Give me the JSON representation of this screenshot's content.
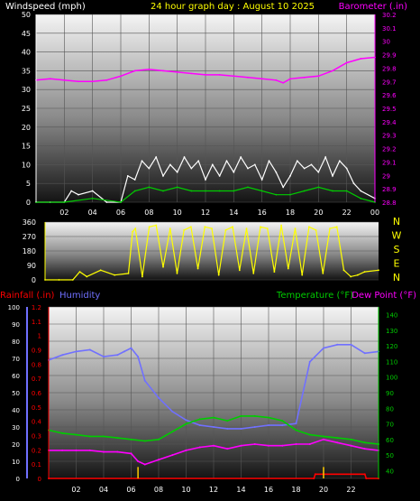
{
  "header": {
    "left_label": "Windspeed (mph)",
    "title": "24 hour graph day : August 10 2025",
    "right_label": "Barometer (.in)"
  },
  "colors": {
    "background": "#000000",
    "axis_text": "#ffffff",
    "title": "#ffff00",
    "barometer": "#ff00ff",
    "wind_speed": "#ffffff",
    "wind_avg": "#00cc00",
    "wind_direction": "#ffff00",
    "rainfall": "#ff0000",
    "humidity": "#7070ff",
    "temperature": "#00cc00",
    "dew_point": "#ff00ff"
  },
  "chart_data": [
    {
      "type": "line",
      "panel": "wind-barometer",
      "xlabel": "",
      "x_ticks": [
        "02",
        "04",
        "06",
        "08",
        "10",
        "12",
        "14",
        "16",
        "18",
        "20",
        "22",
        "00"
      ],
      "ylabel_left": "Windspeed (mph)",
      "ylim_left": [
        0,
        50
      ],
      "yticks_left": [
        "0",
        "5",
        "10",
        "15",
        "20",
        "25",
        "30",
        "35",
        "40",
        "45",
        "50"
      ],
      "ylabel_right": "Barometer (.in)",
      "ylim_right": [
        28.8,
        30.2
      ],
      "yticks_right": [
        "28.8",
        "28.9",
        "29",
        "29.1",
        "29.2",
        "29.3",
        "29.4",
        "29.5",
        "29.6",
        "29.7",
        "29.8",
        "29.9",
        "30",
        "30.1",
        "30.2"
      ],
      "series": [
        {
          "name": "Barometer",
          "axis": "right",
          "x": [
            0,
            1,
            2,
            3,
            4,
            5,
            6,
            7,
            8,
            9,
            10,
            11,
            12,
            13,
            14,
            15,
            16,
            17,
            17.5,
            18,
            19,
            20,
            21,
            22,
            23,
            24
          ],
          "values": [
            29.71,
            29.72,
            29.71,
            29.7,
            29.7,
            29.71,
            29.74,
            29.78,
            29.79,
            29.78,
            29.77,
            29.76,
            29.75,
            29.75,
            29.74,
            29.73,
            29.72,
            29.71,
            29.69,
            29.72,
            29.73,
            29.74,
            29.78,
            29.84,
            29.87,
            29.88
          ]
        },
        {
          "name": "Wind Speed",
          "axis": "left",
          "x": [
            0,
            1,
            2,
            2.5,
            3,
            4,
            5,
            6,
            6.5,
            7,
            7.5,
            8,
            8.5,
            9,
            9.5,
            10,
            10.5,
            11,
            11.5,
            12,
            12.5,
            13,
            13.5,
            14,
            14.5,
            15,
            15.5,
            16,
            16.5,
            17,
            17.5,
            18,
            18.5,
            19,
            19.5,
            20,
            20.5,
            21,
            21.5,
            22,
            22.5,
            23,
            24
          ],
          "values": [
            0,
            0,
            0,
            3,
            2,
            3,
            0,
            0,
            7,
            6,
            11,
            9,
            12,
            7,
            10,
            8,
            12,
            9,
            11,
            6,
            10,
            7,
            11,
            8,
            12,
            9,
            10,
            6,
            11,
            8,
            4,
            7,
            11,
            9,
            10,
            8,
            12,
            7,
            11,
            9,
            5,
            3,
            1
          ]
        },
        {
          "name": "Wind Avg",
          "axis": "left",
          "x": [
            0,
            2,
            4,
            6,
            7,
            8,
            9,
            10,
            11,
            12,
            13,
            14,
            15,
            16,
            17,
            18,
            19,
            20,
            21,
            22,
            23,
            24
          ],
          "values": [
            0,
            0,
            1,
            0,
            3,
            4,
            3,
            4,
            3,
            3,
            3,
            3,
            4,
            3,
            2,
            2,
            3,
            4,
            3,
            3,
            1,
            0
          ]
        }
      ]
    },
    {
      "type": "line",
      "panel": "wind-direction",
      "xlabel": "",
      "ylabel": "",
      "ylim": [
        0,
        360
      ],
      "yticks": [
        "0",
        "90",
        "180",
        "270",
        "360"
      ],
      "compass_labels": [
        "N",
        "W",
        "S",
        "E",
        "N"
      ],
      "series": [
        {
          "name": "Wind Direction",
          "x": [
            0,
            1,
            2,
            2.5,
            3,
            4,
            5,
            6,
            6.3,
            6.5,
            7,
            7.5,
            8,
            8.5,
            9,
            9.5,
            10,
            10.5,
            11,
            11.5,
            12,
            12.5,
            13,
            13.5,
            14,
            14.5,
            15,
            15.5,
            16,
            16.5,
            17,
            17.5,
            18,
            18.5,
            19,
            19.5,
            20,
            20.5,
            21,
            21.5,
            22,
            22.5,
            23,
            24
          ],
          "values": [
            0,
            0,
            0,
            50,
            20,
            60,
            30,
            40,
            300,
            320,
            20,
            330,
            340,
            80,
            320,
            40,
            310,
            330,
            70,
            330,
            320,
            30,
            310,
            330,
            60,
            320,
            40,
            330,
            320,
            50,
            340,
            70,
            320,
            30,
            330,
            310,
            40,
            320,
            330,
            60,
            20,
            30,
            50,
            60
          ]
        }
      ]
    },
    {
      "type": "line",
      "panel": "rain-humidity-temperature",
      "xlabel": "",
      "x_ticks": [
        "02",
        "04",
        "06",
        "08",
        "10",
        "12",
        "14",
        "16",
        "18",
        "20",
        "22"
      ],
      "left_labels": [
        "Rainfall (.in)",
        "Humidity"
      ],
      "ylim_rain": [
        0,
        1.2
      ],
      "yticks_rain": [
        "0",
        "0.1",
        "0.2",
        "0.3",
        "0.4",
        "0.5",
        "0.6",
        "0.7",
        "0.8",
        "0.9",
        "1",
        "1.1",
        "1.2"
      ],
      "ylim_humidity": [
        0,
        100
      ],
      "yticks_humidity": [
        "0",
        "10",
        "20",
        "30",
        "40",
        "50",
        "60",
        "70",
        "80",
        "90",
        "100"
      ],
      "right_labels": [
        "Temperature (°F)",
        "Dew Point (°F)"
      ],
      "ylim_temperature": [
        35,
        145
      ],
      "yticks_temperature": [
        "40",
        "50",
        "60",
        "70",
        "80",
        "90",
        "100",
        "110",
        "120",
        "130",
        "140"
      ],
      "series": [
        {
          "name": "Humidity",
          "axis": "humidity",
          "x": [
            0,
            1,
            2,
            3,
            4,
            5,
            5.5,
            6,
            6.5,
            7,
            8,
            9,
            10,
            11,
            12,
            13,
            14,
            15,
            16,
            17,
            18,
            19,
            20,
            21,
            22,
            23,
            24
          ],
          "values": [
            69,
            72,
            74,
            75,
            71,
            72,
            74,
            76,
            71,
            57,
            47,
            39,
            34,
            31,
            30,
            29,
            29,
            30,
            31,
            31,
            32,
            68,
            76,
            78,
            78,
            73,
            74
          ]
        },
        {
          "name": "Temperature",
          "axis": "temperature",
          "x": [
            0,
            1,
            2,
            3,
            4,
            5,
            6,
            7,
            8,
            9,
            10,
            11,
            12,
            13,
            14,
            15,
            16,
            17,
            18,
            19,
            20,
            21,
            22,
            23,
            24
          ],
          "values": [
            66,
            64,
            63,
            62,
            62,
            61,
            60,
            59,
            60,
            65,
            70,
            73,
            74,
            72,
            75,
            75,
            74,
            72,
            66,
            63,
            62,
            61,
            60,
            58,
            57
          ]
        },
        {
          "name": "Dew Point",
          "axis": "temperature",
          "x": [
            0,
            1,
            2,
            3,
            4,
            5,
            6,
            6.5,
            7,
            8,
            9,
            10,
            11,
            12,
            13,
            14,
            15,
            16,
            17,
            18,
            19,
            20,
            21,
            22,
            23,
            24
          ],
          "values": [
            53,
            53,
            53,
            53,
            52,
            52,
            51,
            46,
            44,
            47,
            50,
            53,
            55,
            56,
            54,
            56,
            57,
            56,
            56,
            57,
            57,
            60,
            58,
            56,
            54,
            53
          ]
        },
        {
          "name": "Rainfall",
          "axis": "rain",
          "x": [
            0,
            19.3,
            19.4,
            23,
            23.1,
            24
          ],
          "values": [
            0,
            0,
            0.03,
            0.03,
            0,
            0
          ]
        },
        {
          "name": "Rain Rate",
          "type": "bar",
          "axis": "rain",
          "x": [
            6.5,
            20
          ],
          "values": [
            0.08,
            0.08
          ]
        }
      ]
    }
  ]
}
